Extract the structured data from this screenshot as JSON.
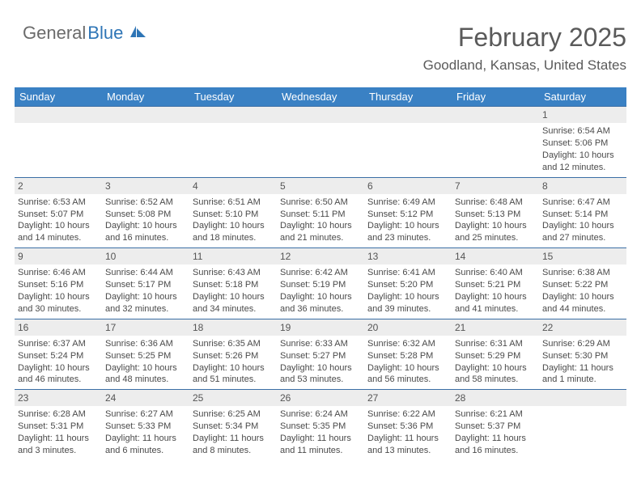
{
  "brand": {
    "part1": "General",
    "part2": "Blue"
  },
  "title": "February 2025",
  "location": "Goodland, Kansas, United States",
  "colors": {
    "header_bg": "#3a81c4",
    "header_text": "#ffffff",
    "row_rule": "#3a6ea5",
    "daynum_bg": "#ededed",
    "body_text": "#4a4a4a",
    "title_text": "#5a5a5a",
    "brand_gray": "#6b6b6b",
    "brand_blue": "#2e75b6",
    "page_bg": "#ffffff"
  },
  "typography": {
    "title_fontsize": 32,
    "location_fontsize": 17,
    "header_fontsize": 13,
    "daynum_fontsize": 12,
    "body_fontsize": 11
  },
  "dayNames": [
    "Sunday",
    "Monday",
    "Tuesday",
    "Wednesday",
    "Thursday",
    "Friday",
    "Saturday"
  ],
  "weeks": [
    [
      {
        "n": "",
        "sunrise": "",
        "sunset": "",
        "d1": "",
        "d2": ""
      },
      {
        "n": "",
        "sunrise": "",
        "sunset": "",
        "d1": "",
        "d2": ""
      },
      {
        "n": "",
        "sunrise": "",
        "sunset": "",
        "d1": "",
        "d2": ""
      },
      {
        "n": "",
        "sunrise": "",
        "sunset": "",
        "d1": "",
        "d2": ""
      },
      {
        "n": "",
        "sunrise": "",
        "sunset": "",
        "d1": "",
        "d2": ""
      },
      {
        "n": "",
        "sunrise": "",
        "sunset": "",
        "d1": "",
        "d2": ""
      },
      {
        "n": "1",
        "sunrise": "Sunrise: 6:54 AM",
        "sunset": "Sunset: 5:06 PM",
        "d1": "Daylight: 10 hours",
        "d2": "and 12 minutes."
      }
    ],
    [
      {
        "n": "2",
        "sunrise": "Sunrise: 6:53 AM",
        "sunset": "Sunset: 5:07 PM",
        "d1": "Daylight: 10 hours",
        "d2": "and 14 minutes."
      },
      {
        "n": "3",
        "sunrise": "Sunrise: 6:52 AM",
        "sunset": "Sunset: 5:08 PM",
        "d1": "Daylight: 10 hours",
        "d2": "and 16 minutes."
      },
      {
        "n": "4",
        "sunrise": "Sunrise: 6:51 AM",
        "sunset": "Sunset: 5:10 PM",
        "d1": "Daylight: 10 hours",
        "d2": "and 18 minutes."
      },
      {
        "n": "5",
        "sunrise": "Sunrise: 6:50 AM",
        "sunset": "Sunset: 5:11 PM",
        "d1": "Daylight: 10 hours",
        "d2": "and 21 minutes."
      },
      {
        "n": "6",
        "sunrise": "Sunrise: 6:49 AM",
        "sunset": "Sunset: 5:12 PM",
        "d1": "Daylight: 10 hours",
        "d2": "and 23 minutes."
      },
      {
        "n": "7",
        "sunrise": "Sunrise: 6:48 AM",
        "sunset": "Sunset: 5:13 PM",
        "d1": "Daylight: 10 hours",
        "d2": "and 25 minutes."
      },
      {
        "n": "8",
        "sunrise": "Sunrise: 6:47 AM",
        "sunset": "Sunset: 5:14 PM",
        "d1": "Daylight: 10 hours",
        "d2": "and 27 minutes."
      }
    ],
    [
      {
        "n": "9",
        "sunrise": "Sunrise: 6:46 AM",
        "sunset": "Sunset: 5:16 PM",
        "d1": "Daylight: 10 hours",
        "d2": "and 30 minutes."
      },
      {
        "n": "10",
        "sunrise": "Sunrise: 6:44 AM",
        "sunset": "Sunset: 5:17 PM",
        "d1": "Daylight: 10 hours",
        "d2": "and 32 minutes."
      },
      {
        "n": "11",
        "sunrise": "Sunrise: 6:43 AM",
        "sunset": "Sunset: 5:18 PM",
        "d1": "Daylight: 10 hours",
        "d2": "and 34 minutes."
      },
      {
        "n": "12",
        "sunrise": "Sunrise: 6:42 AM",
        "sunset": "Sunset: 5:19 PM",
        "d1": "Daylight: 10 hours",
        "d2": "and 36 minutes."
      },
      {
        "n": "13",
        "sunrise": "Sunrise: 6:41 AM",
        "sunset": "Sunset: 5:20 PM",
        "d1": "Daylight: 10 hours",
        "d2": "and 39 minutes."
      },
      {
        "n": "14",
        "sunrise": "Sunrise: 6:40 AM",
        "sunset": "Sunset: 5:21 PM",
        "d1": "Daylight: 10 hours",
        "d2": "and 41 minutes."
      },
      {
        "n": "15",
        "sunrise": "Sunrise: 6:38 AM",
        "sunset": "Sunset: 5:22 PM",
        "d1": "Daylight: 10 hours",
        "d2": "and 44 minutes."
      }
    ],
    [
      {
        "n": "16",
        "sunrise": "Sunrise: 6:37 AM",
        "sunset": "Sunset: 5:24 PM",
        "d1": "Daylight: 10 hours",
        "d2": "and 46 minutes."
      },
      {
        "n": "17",
        "sunrise": "Sunrise: 6:36 AM",
        "sunset": "Sunset: 5:25 PM",
        "d1": "Daylight: 10 hours",
        "d2": "and 48 minutes."
      },
      {
        "n": "18",
        "sunrise": "Sunrise: 6:35 AM",
        "sunset": "Sunset: 5:26 PM",
        "d1": "Daylight: 10 hours",
        "d2": "and 51 minutes."
      },
      {
        "n": "19",
        "sunrise": "Sunrise: 6:33 AM",
        "sunset": "Sunset: 5:27 PM",
        "d1": "Daylight: 10 hours",
        "d2": "and 53 minutes."
      },
      {
        "n": "20",
        "sunrise": "Sunrise: 6:32 AM",
        "sunset": "Sunset: 5:28 PM",
        "d1": "Daylight: 10 hours",
        "d2": "and 56 minutes."
      },
      {
        "n": "21",
        "sunrise": "Sunrise: 6:31 AM",
        "sunset": "Sunset: 5:29 PM",
        "d1": "Daylight: 10 hours",
        "d2": "and 58 minutes."
      },
      {
        "n": "22",
        "sunrise": "Sunrise: 6:29 AM",
        "sunset": "Sunset: 5:30 PM",
        "d1": "Daylight: 11 hours",
        "d2": "and 1 minute."
      }
    ],
    [
      {
        "n": "23",
        "sunrise": "Sunrise: 6:28 AM",
        "sunset": "Sunset: 5:31 PM",
        "d1": "Daylight: 11 hours",
        "d2": "and 3 minutes."
      },
      {
        "n": "24",
        "sunrise": "Sunrise: 6:27 AM",
        "sunset": "Sunset: 5:33 PM",
        "d1": "Daylight: 11 hours",
        "d2": "and 6 minutes."
      },
      {
        "n": "25",
        "sunrise": "Sunrise: 6:25 AM",
        "sunset": "Sunset: 5:34 PM",
        "d1": "Daylight: 11 hours",
        "d2": "and 8 minutes."
      },
      {
        "n": "26",
        "sunrise": "Sunrise: 6:24 AM",
        "sunset": "Sunset: 5:35 PM",
        "d1": "Daylight: 11 hours",
        "d2": "and 11 minutes."
      },
      {
        "n": "27",
        "sunrise": "Sunrise: 6:22 AM",
        "sunset": "Sunset: 5:36 PM",
        "d1": "Daylight: 11 hours",
        "d2": "and 13 minutes."
      },
      {
        "n": "28",
        "sunrise": "Sunrise: 6:21 AM",
        "sunset": "Sunset: 5:37 PM",
        "d1": "Daylight: 11 hours",
        "d2": "and 16 minutes."
      },
      {
        "n": "",
        "sunrise": "",
        "sunset": "",
        "d1": "",
        "d2": ""
      }
    ]
  ]
}
